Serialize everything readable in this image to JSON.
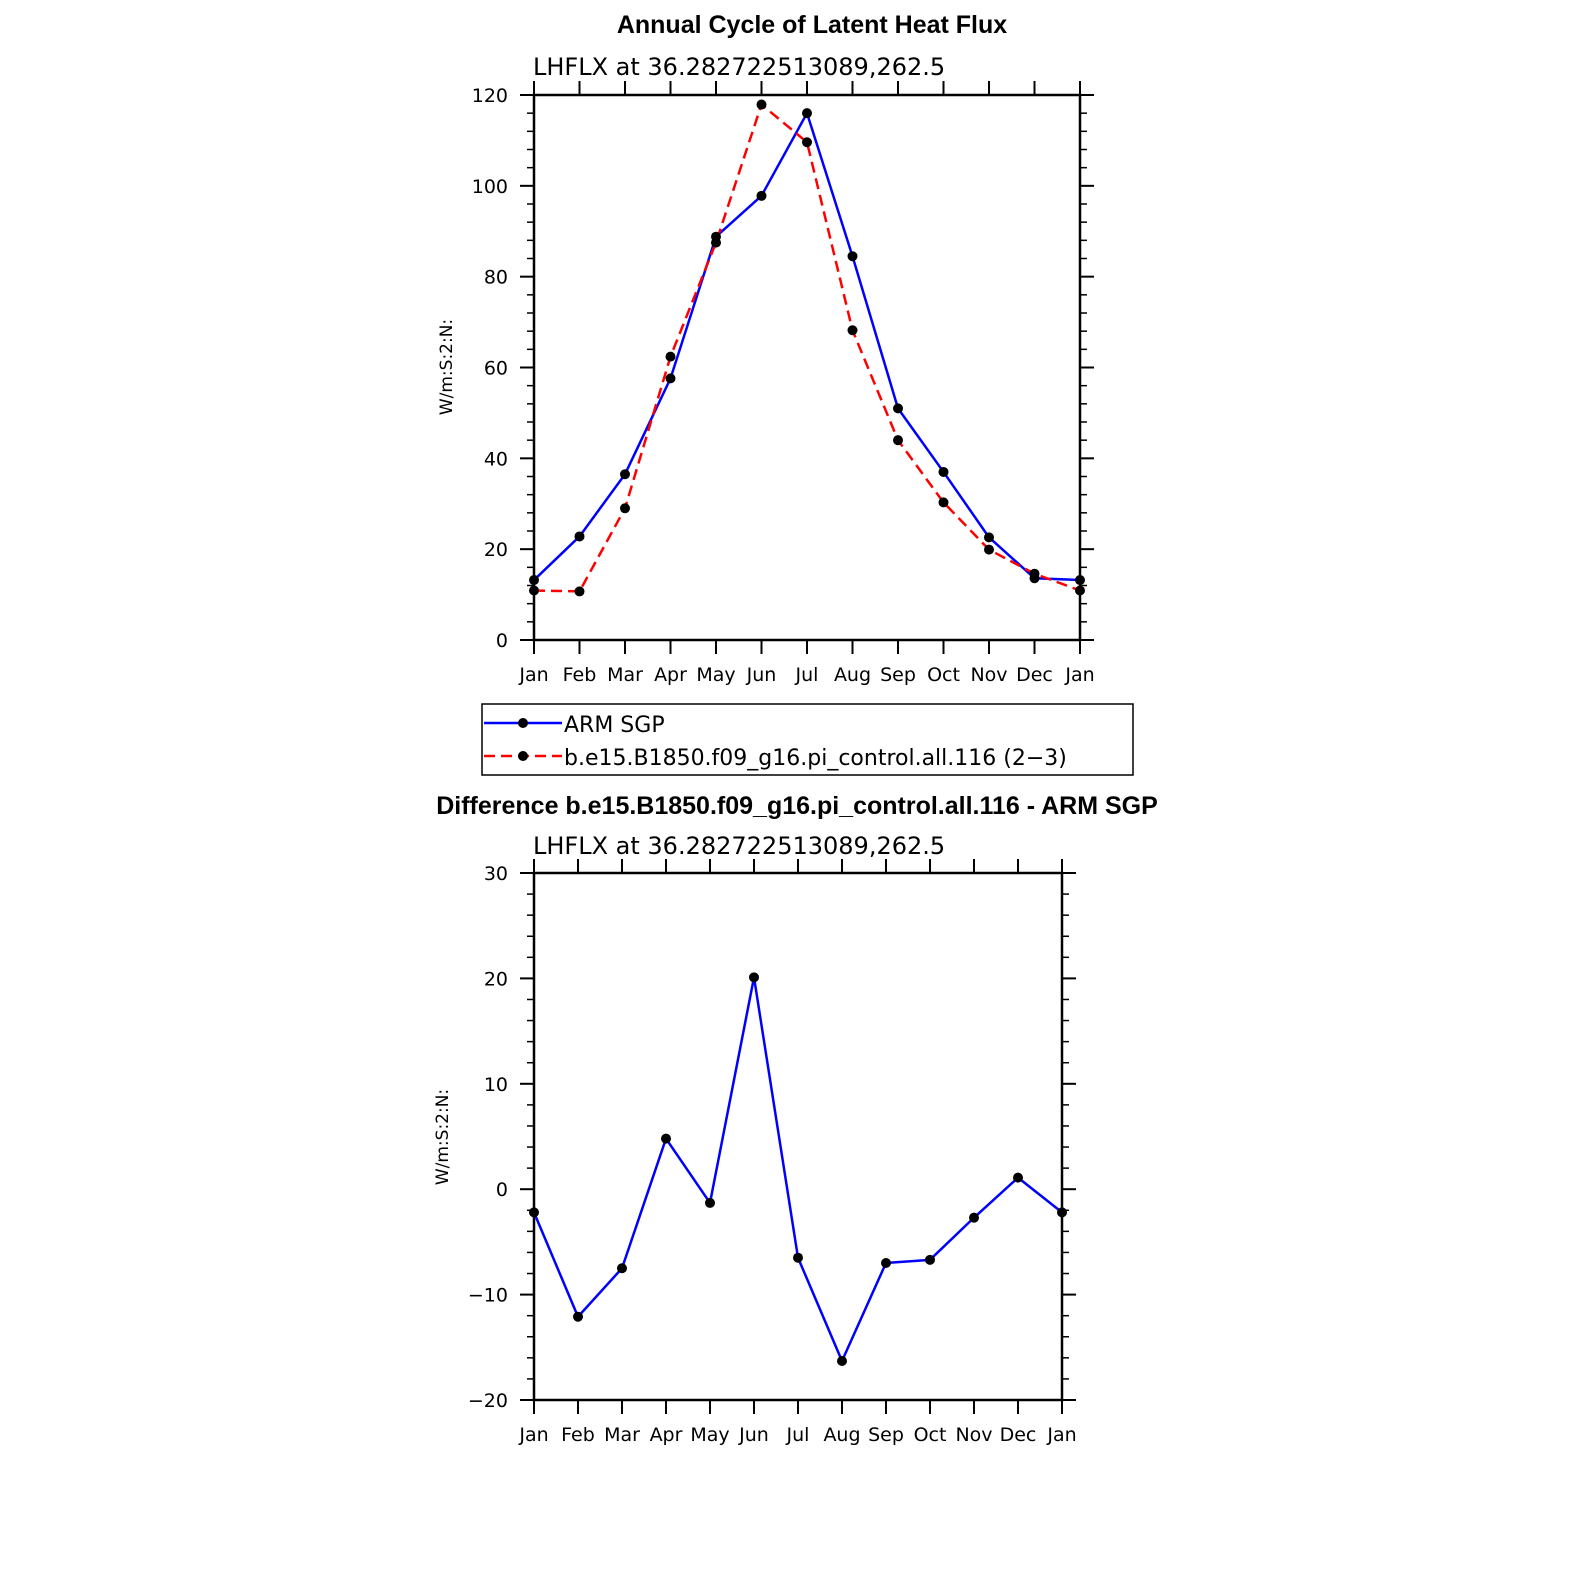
{
  "chart_data": [
    {
      "type": "line",
      "title": "Annual Cycle of Latent Heat Flux",
      "subtitle": "LHFLX at 36.282722513089,262.5",
      "ylabel": "W/m:S:2:N:",
      "xlabel": "",
      "categories": [
        "Jan",
        "Feb",
        "Mar",
        "Apr",
        "May",
        "Jun",
        "Jul",
        "Aug",
        "Sep",
        "Oct",
        "Nov",
        "Dec",
        "Jan"
      ],
      "ylim": [
        0,
        120
      ],
      "yticks": [
        0,
        20,
        40,
        60,
        80,
        100,
        120
      ],
      "series": [
        {
          "name": "ARM SGP",
          "color": "#0000ff",
          "dashed": false,
          "values": [
            13.2,
            22.8,
            36.5,
            57.6,
            88.8,
            97.8,
            116.0,
            84.5,
            51.0,
            37.0,
            22.6,
            13.6,
            13.2
          ]
        },
        {
          "name": "b.e15.B1850.f09_g16.pi_control.all.116 (2−3)",
          "color": "#ff0000",
          "dashed": true,
          "values": [
            10.9,
            10.7,
            29.0,
            62.4,
            87.5,
            117.9,
            109.6,
            68.2,
            44.0,
            30.3,
            19.9,
            14.6,
            10.9
          ]
        }
      ],
      "legend": "below"
    },
    {
      "type": "line",
      "title": "Difference b.e15.B1850.f09_g16.pi_control.all.116 - ARM SGP",
      "subtitle": "LHFLX at 36.282722513089,262.5",
      "ylabel": "W/m:S:2:N:",
      "xlabel": "",
      "categories": [
        "Jan",
        "Feb",
        "Mar",
        "Apr",
        "May",
        "Jun",
        "Jul",
        "Aug",
        "Sep",
        "Oct",
        "Nov",
        "Dec",
        "Jan"
      ],
      "ylim": [
        -20,
        30
      ],
      "yticks": [
        -20,
        -10,
        0,
        10,
        20,
        30
      ],
      "ytick_labels": [
        "−20",
        "−10",
        "0",
        "10",
        "20",
        "30"
      ],
      "series": [
        {
          "name": "Difference",
          "color": "#0000ff",
          "dashed": false,
          "values": [
            -2.2,
            -12.1,
            -7.5,
            4.8,
            -1.3,
            20.1,
            -6.5,
            -16.3,
            -7.0,
            -6.7,
            -2.7,
            1.1,
            -2.2
          ]
        }
      ]
    }
  ]
}
